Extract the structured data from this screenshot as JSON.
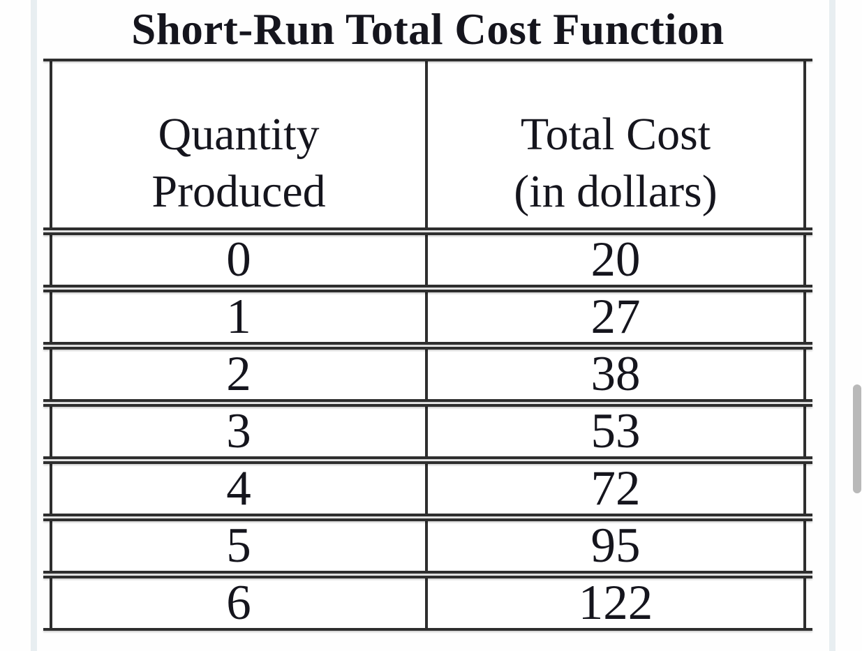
{
  "page": {
    "title": "Short-Run Total Cost Function"
  },
  "table": {
    "header": {
      "col1": {
        "line1": "Quantity",
        "line2": "Produced"
      },
      "col2": {
        "line1": "Total Cost",
        "line2": "(in dollars)"
      }
    },
    "rows": [
      {
        "quantity": "0",
        "total_cost": "20"
      },
      {
        "quantity": "1",
        "total_cost": "27"
      },
      {
        "quantity": "2",
        "total_cost": "38"
      },
      {
        "quantity": "3",
        "total_cost": "53"
      },
      {
        "quantity": "4",
        "total_cost": "72"
      },
      {
        "quantity": "5",
        "total_cost": "95"
      },
      {
        "quantity": "6",
        "total_cost": "122"
      }
    ]
  },
  "chart_data": {
    "type": "table",
    "title": "Short-Run Total Cost Function",
    "columns": [
      "Quantity Produced",
      "Total Cost (in dollars)"
    ],
    "rows": [
      [
        0,
        20
      ],
      [
        1,
        27
      ],
      [
        2,
        38
      ],
      [
        3,
        53
      ],
      [
        4,
        72
      ],
      [
        5,
        95
      ],
      [
        6,
        122
      ]
    ]
  },
  "colors": {
    "line": "#2e2e2e",
    "text": "#15151d",
    "page_edge": "#e8eef1",
    "scrollbar_thumb": "#b9b9b9",
    "background": "#fefefe"
  }
}
